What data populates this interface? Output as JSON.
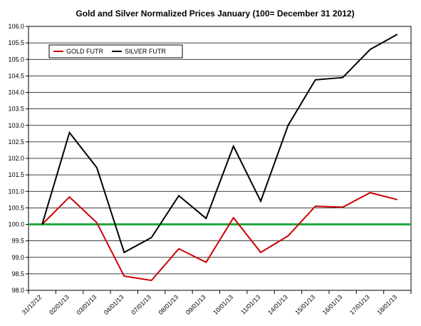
{
  "chart_data": {
    "type": "line",
    "title": "Gold and Silver Normalized Prices January (100= December 31 2012)",
    "xlabel": "",
    "ylabel": "",
    "categories": [
      "31/12/12",
      "02/01/13",
      "03/01/13",
      "04/01/13",
      "07/01/13",
      "08/01/13",
      "09/01/13",
      "10/01/13",
      "11/01/13",
      "14/01/13",
      "15/01/13",
      "16/01/13",
      "17/01/13",
      "18/01/13"
    ],
    "series": [
      {
        "name": "GOLD  FUTR",
        "color": "#cc0000",
        "values": [
          100.0,
          100.83,
          100.05,
          98.43,
          98.3,
          99.26,
          98.85,
          100.2,
          99.15,
          99.65,
          100.55,
          100.52,
          100.96,
          100.75
        ]
      },
      {
        "name": "SILVER  FUTR",
        "color": "#000000",
        "values": [
          100.0,
          102.78,
          101.72,
          99.15,
          99.6,
          100.87,
          100.18,
          102.37,
          100.7,
          103.0,
          104.38,
          104.45,
          105.3,
          105.76
        ]
      }
    ],
    "baseline": {
      "value": 100.0,
      "color": "#22aa44"
    },
    "ylim": [
      98.0,
      106.0
    ],
    "yticks": [
      "98.0",
      "98.5",
      "99.0",
      "99.5",
      "100.0",
      "100.5",
      "101.0",
      "101.5",
      "102.0",
      "102.5",
      "103.0",
      "103.5",
      "104.0",
      "104.5",
      "105.0",
      "105.5",
      "106.0"
    ],
    "grid": true,
    "legend_position": "top-left"
  }
}
